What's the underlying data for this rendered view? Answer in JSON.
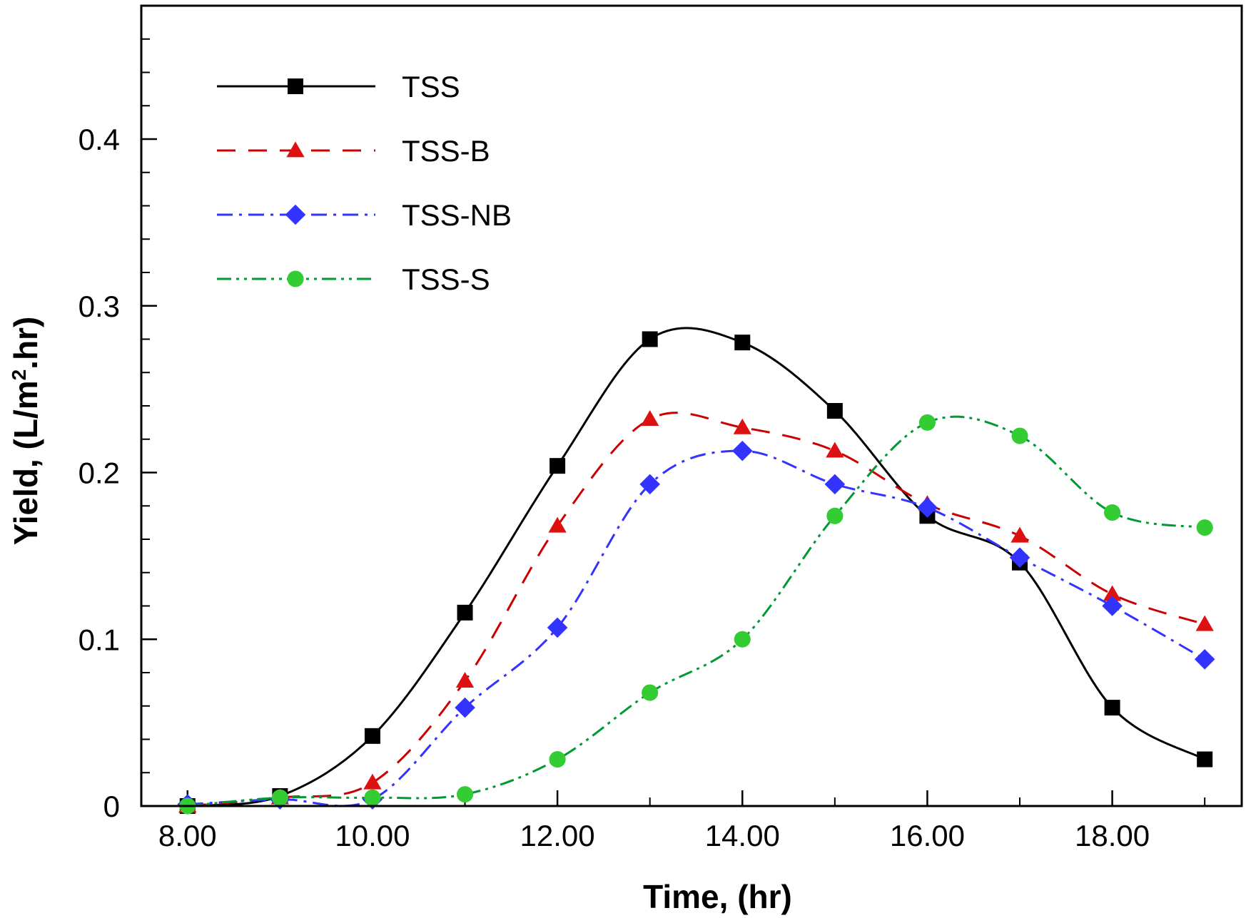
{
  "chart_data": {
    "type": "line",
    "xlabel": "Time, (hr)",
    "ylabel_main": "Yield, (L/m",
    "ylabel_sup": "2",
    "ylabel_tail": ".hr)",
    "xlim": [
      7.5,
      19.4
    ],
    "ylim": [
      0,
      0.48
    ],
    "xticks": [
      8,
      10,
      12,
      14,
      16,
      18
    ],
    "xtick_labels": [
      "8.00",
      "10.00",
      "12.00",
      "14.00",
      "16.00",
      "18.00"
    ],
    "xminor": [
      9,
      11,
      13,
      15,
      17,
      19
    ],
    "yticks": [
      0,
      0.1,
      0.2,
      0.3,
      0.4
    ],
    "ytick_labels": [
      "0",
      "0.1",
      "0.2",
      "0.3",
      "0.4"
    ],
    "yminor": [
      0.02,
      0.04,
      0.06,
      0.08,
      0.12,
      0.14,
      0.16,
      0.18,
      0.22,
      0.24,
      0.26,
      0.28,
      0.32,
      0.34,
      0.36,
      0.38,
      0.42,
      0.44,
      0.46
    ],
    "legend_position": "top-left",
    "x": [
      8,
      9,
      10,
      11,
      12,
      13,
      14,
      15,
      16,
      17,
      18,
      19
    ],
    "series": [
      {
        "name": "TSS",
        "values": [
          0,
          0.006,
          0.042,
          0.116,
          0.204,
          0.28,
          0.278,
          0.237,
          0.174,
          0.146,
          0.059,
          0.028
        ],
        "color": "#000000",
        "marker": "square",
        "dash": ""
      },
      {
        "name": "TSS-B",
        "values": [
          0,
          0.005,
          0.014,
          0.075,
          0.168,
          0.232,
          0.227,
          0.213,
          0.181,
          0.162,
          0.127,
          0.109
        ],
        "color": "#cc0000",
        "marker": "triangle",
        "dash": "26,18"
      },
      {
        "name": "TSS-NB",
        "values": [
          0.001,
          0.004,
          0.004,
          0.059,
          0.107,
          0.193,
          0.213,
          0.193,
          0.179,
          0.149,
          0.12,
          0.088
        ],
        "color": "#3333ff",
        "marker": "diamond",
        "dash": "22,9,4,9"
      },
      {
        "name": "TSS-S",
        "values": [
          0,
          0.005,
          0.005,
          0.007,
          0.028,
          0.068,
          0.1,
          0.174,
          0.23,
          0.222,
          0.176,
          0.167
        ],
        "color": "#009933",
        "marker": "circle",
        "marker_color": "#33cc33",
        "dash": "20,7,4,7,4,7"
      }
    ]
  }
}
